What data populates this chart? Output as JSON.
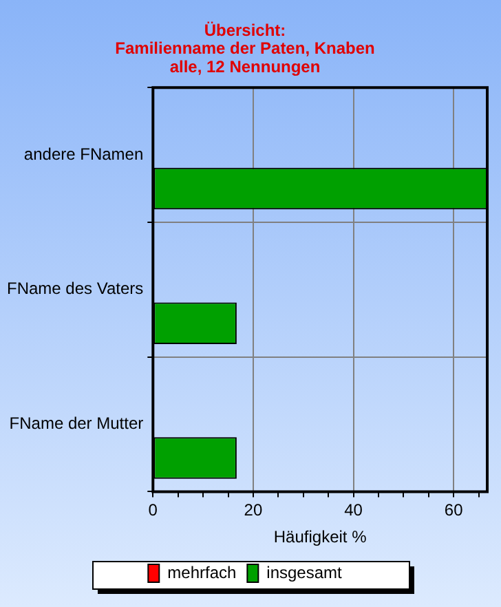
{
  "chart_data": {
    "type": "bar",
    "orientation": "horizontal",
    "title": "Übersicht:\nFamilienname der Paten, Knaben\nalle, 12 Nennungen",
    "xlabel": "Häufigkeit %",
    "categories": [
      "andere FNamen",
      "FName des Vaters",
      "FName der Mutter"
    ],
    "series": [
      {
        "name": "mehrfach",
        "color": "#ff0000",
        "values": [
          0,
          0,
          0
        ]
      },
      {
        "name": "insgesamt",
        "color": "#00a000",
        "values": [
          66.7,
          16.7,
          16.7
        ]
      }
    ],
    "xlim": [
      0,
      66.7
    ],
    "xticks": [
      0,
      {
        "value": 5,
        "label": null
      },
      {
        "value": 10,
        "label": null
      },
      {
        "value": 15,
        "label": null
      },
      20,
      {
        "value": 25,
        "label": null
      },
      {
        "value": 30,
        "label": null
      },
      {
        "value": 35,
        "label": null
      },
      40,
      {
        "value": 45,
        "label": null
      },
      {
        "value": 50,
        "label": null
      },
      {
        "value": 55,
        "label": null
      },
      60,
      {
        "value": 65,
        "label": null
      }
    ],
    "grid": true,
    "legend": "bottom"
  }
}
